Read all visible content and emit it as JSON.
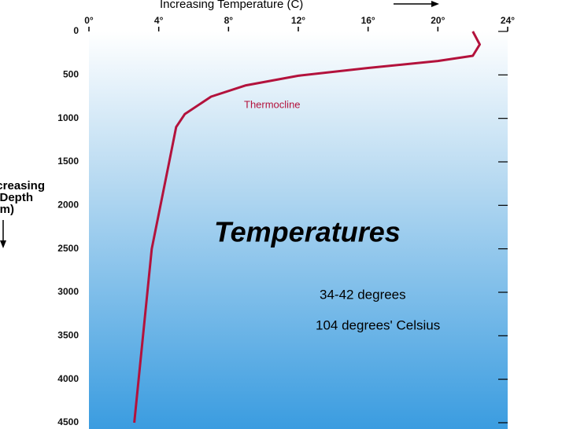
{
  "chart_data": {
    "type": "line",
    "title": "Increasing Temperature (C)",
    "y_label": [
      "Increasing",
      "Depth",
      "(m)"
    ],
    "x": [
      22.0,
      22.4,
      22.0,
      20.0,
      16.0,
      12.0,
      9.0,
      7.0,
      5.5,
      5.0,
      4.6,
      3.6,
      2.6
    ],
    "values": [
      0,
      150,
      280,
      340,
      420,
      510,
      620,
      750,
      950,
      1100,
      1500,
      2500,
      4500
    ],
    "color": "#b3123c",
    "xlim": [
      0,
      24
    ],
    "xticks": [
      {
        "value": 0,
        "label": "0°"
      },
      {
        "value": 4,
        "label": "4°"
      },
      {
        "value": 8,
        "label": "8°"
      },
      {
        "value": 12,
        "label": "12°"
      },
      {
        "value": 16,
        "label": "16°"
      },
      {
        "value": 20,
        "label": "20°"
      },
      {
        "value": 24,
        "label": "24°"
      }
    ],
    "ylim": [
      0,
      4500
    ],
    "y_inverted": true,
    "yticks": [
      0,
      500,
      1000,
      1500,
      2000,
      2500,
      3000,
      3500,
      4000,
      4500
    ],
    "annotations": [
      "Thermocline",
      "Temperatures",
      "34-42 degrees",
      "104 degrees' Celsius"
    ]
  }
}
